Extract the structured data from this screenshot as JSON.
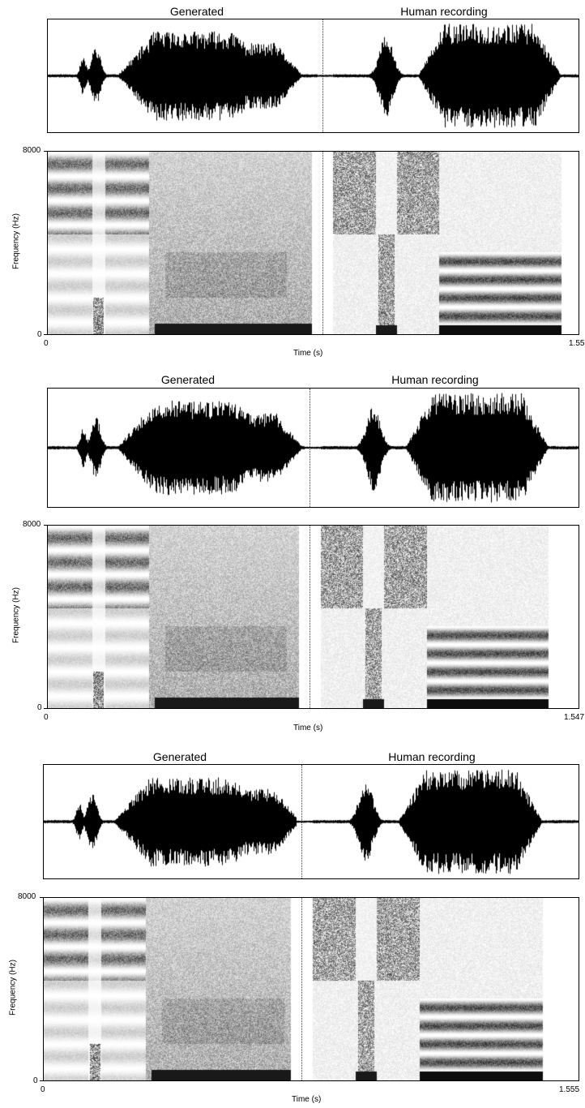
{
  "labels": {
    "generated": "Generated",
    "human": "Human recording",
    "time_axis": "Time (s)",
    "freq_axis": "Frequency (Hz)",
    "freq_max": "8000",
    "freq_min": "0",
    "time_start": "0"
  },
  "panels": [
    {
      "time_end": "1.55",
      "split_fraction": 0.507
    },
    {
      "time_end": "1.547",
      "split_fraction": 0.496
    },
    {
      "time_end": "1.555",
      "split_fraction": 0.475
    }
  ]
}
